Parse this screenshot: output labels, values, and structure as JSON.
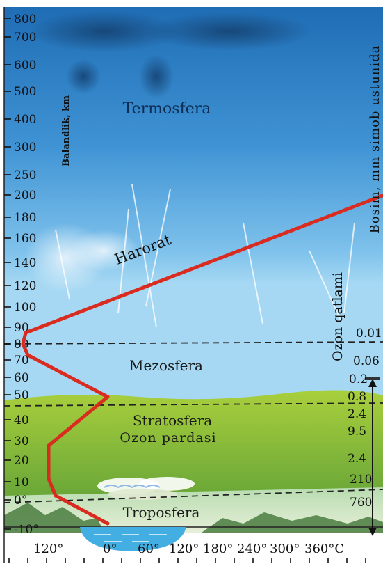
{
  "y_axis": {
    "label": "Balandlik, km",
    "ticks": [
      "800",
      "700",
      "600",
      "500",
      "400",
      "300",
      "250",
      "200",
      "180",
      "160",
      "140",
      "120",
      "100",
      "90",
      "80",
      "70",
      "60",
      "50",
      "40",
      "30",
      "20",
      "10",
      "0°",
      "-10°"
    ]
  },
  "x_axis": {
    "ticks": [
      "120°",
      "0°",
      "60°",
      "120°",
      "180°",
      "240°",
      "300°",
      "360°C"
    ]
  },
  "layers": {
    "thermosphere": "Termosfera",
    "mesosphere": "Mezosfera",
    "stratosphere": "Stratosfera",
    "ozone_shield": "Ozon pardasi",
    "troposphere": "Troposfera"
  },
  "temperature_label": "Harorat",
  "ozone_layer_label": "Ozon qatlami",
  "pressure_label": "Bosim, mm simob ustunida",
  "pressure_values": [
    "0.01",
    "0.06",
    "0.2",
    "0.8",
    "2.4",
    "9.5",
    "2.4",
    "210",
    "760"
  ],
  "colors": {
    "sky_top": "#1b6fb8",
    "sky_mid": "#5fb0e3",
    "strato_green": "#9ccb3c",
    "temperature_line": "#d92b1f",
    "water": "#43aee2"
  }
}
